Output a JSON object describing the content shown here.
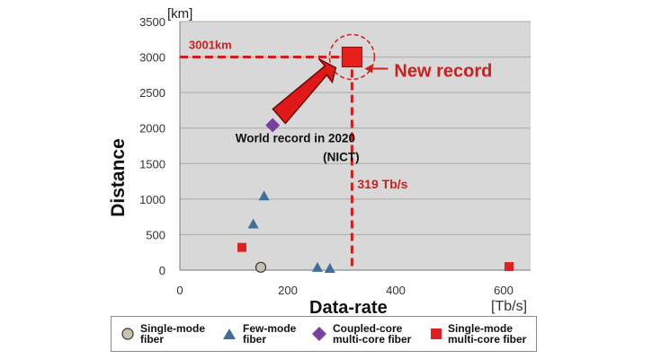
{
  "chart_data": {
    "type": "scatter",
    "xlabel": "Data-rate",
    "xunit": "[Tb/s]",
    "ylabel": "Distance",
    "yunit": "[km]",
    "xlim": [
      0,
      650
    ],
    "ylim": [
      0,
      3500
    ],
    "xticks": [
      0,
      200,
      400,
      600
    ],
    "yticks": [
      0,
      500,
      1000,
      1500,
      2000,
      2500,
      3000,
      3500
    ],
    "grid": true,
    "legend_position": "bottom",
    "series": [
      {
        "name": "Single-mode\nfiber",
        "marker": "circle",
        "color": "#c9c2b0",
        "points": [
          {
            "x": 150,
            "y": 40
          }
        ]
      },
      {
        "name": "Few-mode\nfiber",
        "marker": "triangle",
        "color": "#3f6e9e",
        "points": [
          {
            "x": 136,
            "y": 650
          },
          {
            "x": 156,
            "y": 1045
          },
          {
            "x": 255,
            "y": 40
          },
          {
            "x": 278,
            "y": 25
          }
        ]
      },
      {
        "name": "Coupled-core\nmulti-core fiber",
        "marker": "diamond",
        "color": "#7b3fa0",
        "points": [
          {
            "x": 172,
            "y": 2040
          }
        ]
      },
      {
        "name": "Single-mode\nmulti-core fiber",
        "marker": "square",
        "color": "#e02020",
        "points": [
          {
            "x": 115,
            "y": 320
          },
          {
            "x": 610,
            "y": 50
          }
        ]
      }
    ],
    "record": {
      "x": 319,
      "y": 3001
    },
    "annotations": {
      "distance_label": "3001km",
      "rate_label": "319 Tb/s",
      "new_record": "New record",
      "world_record": "World record in 2020\n(NICT)"
    }
  },
  "colors": {
    "accent": "#cc1f1f",
    "grid": "#a9a9a9",
    "plot_bg": "#d8d8d8"
  }
}
